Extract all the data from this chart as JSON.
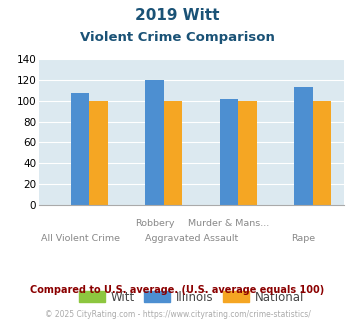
{
  "title_line1": "2019 Witt",
  "title_line2": "Violent Crime Comparison",
  "cat_top": [
    "",
    "Robbery",
    "Murder & Mans...",
    ""
  ],
  "cat_bottom": [
    "All Violent Crime",
    "Aggravated Assault",
    "",
    "Rape"
  ],
  "witt_values": [
    0,
    0,
    0,
    0
  ],
  "illinois_values": [
    108,
    120,
    102,
    113
  ],
  "national_values": [
    100,
    100,
    100,
    100
  ],
  "witt_color": "#8dc63f",
  "illinois_color": "#4d8fd1",
  "national_color": "#f5a623",
  "bg_color": "#dce9f0",
  "ylim": [
    0,
    140
  ],
  "yticks": [
    0,
    20,
    40,
    60,
    80,
    100,
    120,
    140
  ],
  "legend_labels": [
    "Witt",
    "Illinois",
    "National"
  ],
  "footnote1": "Compared to U.S. average. (U.S. average equals 100)",
  "footnote2": "© 2025 CityRating.com - https://www.cityrating.com/crime-statistics/",
  "title_color": "#1a5276",
  "footnote1_color": "#8b0000",
  "footnote2_color": "#aaaaaa",
  "footnote2_link_color": "#4d8fd1"
}
